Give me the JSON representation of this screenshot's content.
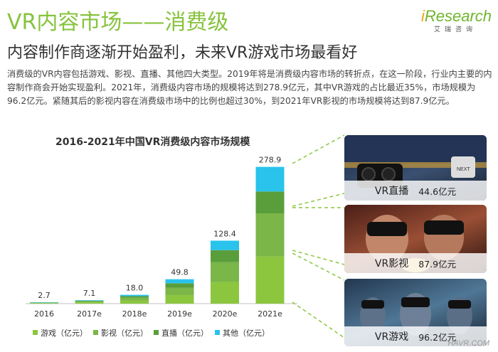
{
  "header": {
    "title": "VR内容市场——消费级",
    "subtitle": "内容制作商逐渐开始盈利，未来VR游戏市场最看好"
  },
  "logo": {
    "brand_i": "i",
    "brand_rest": "Research",
    "sub": "艾瑞咨询"
  },
  "body_text": "消费级的VR内容包括游戏、影视、直播、其他四大类型。2019年将是消费级内容市场的转折点，在这一阶段，行业内主要的内容制作商会开始实现盈利。2021年，消费级内容市场的规模将达到278.9亿元，其中VR游戏的占比最近35%，市场规模为96.2亿元。紧随其后的影视内容在消费级市场中的比例也超过30%，到2021年VR影视的市场规模将达到87.9亿元。",
  "chart_data": {
    "type": "bar",
    "stacked": true,
    "title": "2016-2021年中国VR消费级内容市场规模",
    "categories": [
      "2016",
      "2017e",
      "2018e",
      "2019e",
      "2020e",
      "2021e"
    ],
    "totals": [
      2.7,
      7.1,
      18.0,
      49.8,
      128.4,
      278.9
    ],
    "total_labels": [
      "2.7",
      "7.1",
      "18.0",
      "49.8",
      "128.4",
      "278.9"
    ],
    "series": [
      {
        "name": "游戏（亿元）",
        "color": "#8cc63f",
        "values": [
          1.0,
          2.6,
          6.4,
          17.5,
          44.3,
          96.2
        ]
      },
      {
        "name": "影视（亿元）",
        "color": "#7ab648",
        "values": [
          0.8,
          2.1,
          5.6,
          15.0,
          40.2,
          87.9
        ]
      },
      {
        "name": "直播（亿元）",
        "color": "#5a9e3b",
        "values": [
          0.5,
          1.3,
          3.2,
          9.0,
          24.6,
          44.6
        ]
      },
      {
        "name": "其他（亿元）",
        "color": "#29c3ec",
        "values": [
          0.4,
          1.1,
          2.8,
          8.3,
          19.3,
          50.2
        ]
      }
    ],
    "legend": "bottom",
    "grid": false
  },
  "photos": [
    {
      "label": "VR直播",
      "value": "44.6亿元",
      "bg": "#2b3a52"
    },
    {
      "label": "VR影视",
      "value": "87.9亿元",
      "bg": "#7a3e2e"
    },
    {
      "label": "VR游戏",
      "value": "96.2亿元",
      "bg": "#3b5a78"
    }
  ],
  "watermark": "HAVR.COM"
}
